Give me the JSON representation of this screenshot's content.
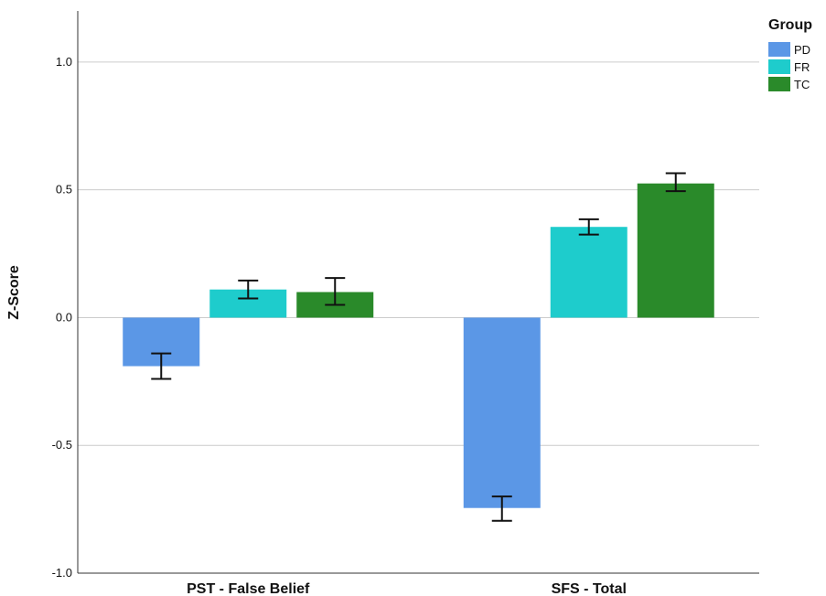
{
  "chart_data": {
    "type": "bar",
    "categories": [
      "PST - False Belief",
      "SFS - Total"
    ],
    "ylabel": "Z-Score",
    "ylim": [
      -1.0,
      1.2
    ],
    "yticks": [
      1.0,
      0.5,
      0.0,
      -0.5,
      -1.0
    ],
    "ytick_labels": [
      "1.0",
      "0.5",
      "0.0",
      "-0.5",
      "-1.0"
    ],
    "grid": true,
    "legend": {
      "title": "Group",
      "placement": "top-right"
    },
    "series": [
      {
        "name": "PD",
        "color": "#5b97e6",
        "values": [
          -0.19,
          -0.745
        ],
        "err_low": [
          -0.24,
          -0.795
        ],
        "err_high": [
          -0.14,
          -0.7
        ]
      },
      {
        "name": "FR",
        "color": "#1ecccc",
        "values": [
          0.11,
          0.355
        ],
        "err_low": [
          0.075,
          0.325
        ],
        "err_high": [
          0.145,
          0.385
        ]
      },
      {
        "name": "TC",
        "color": "#2a8a2a",
        "values": [
          0.1,
          0.525
        ],
        "err_low": [
          0.05,
          0.495
        ],
        "err_high": [
          0.155,
          0.565
        ]
      }
    ]
  }
}
